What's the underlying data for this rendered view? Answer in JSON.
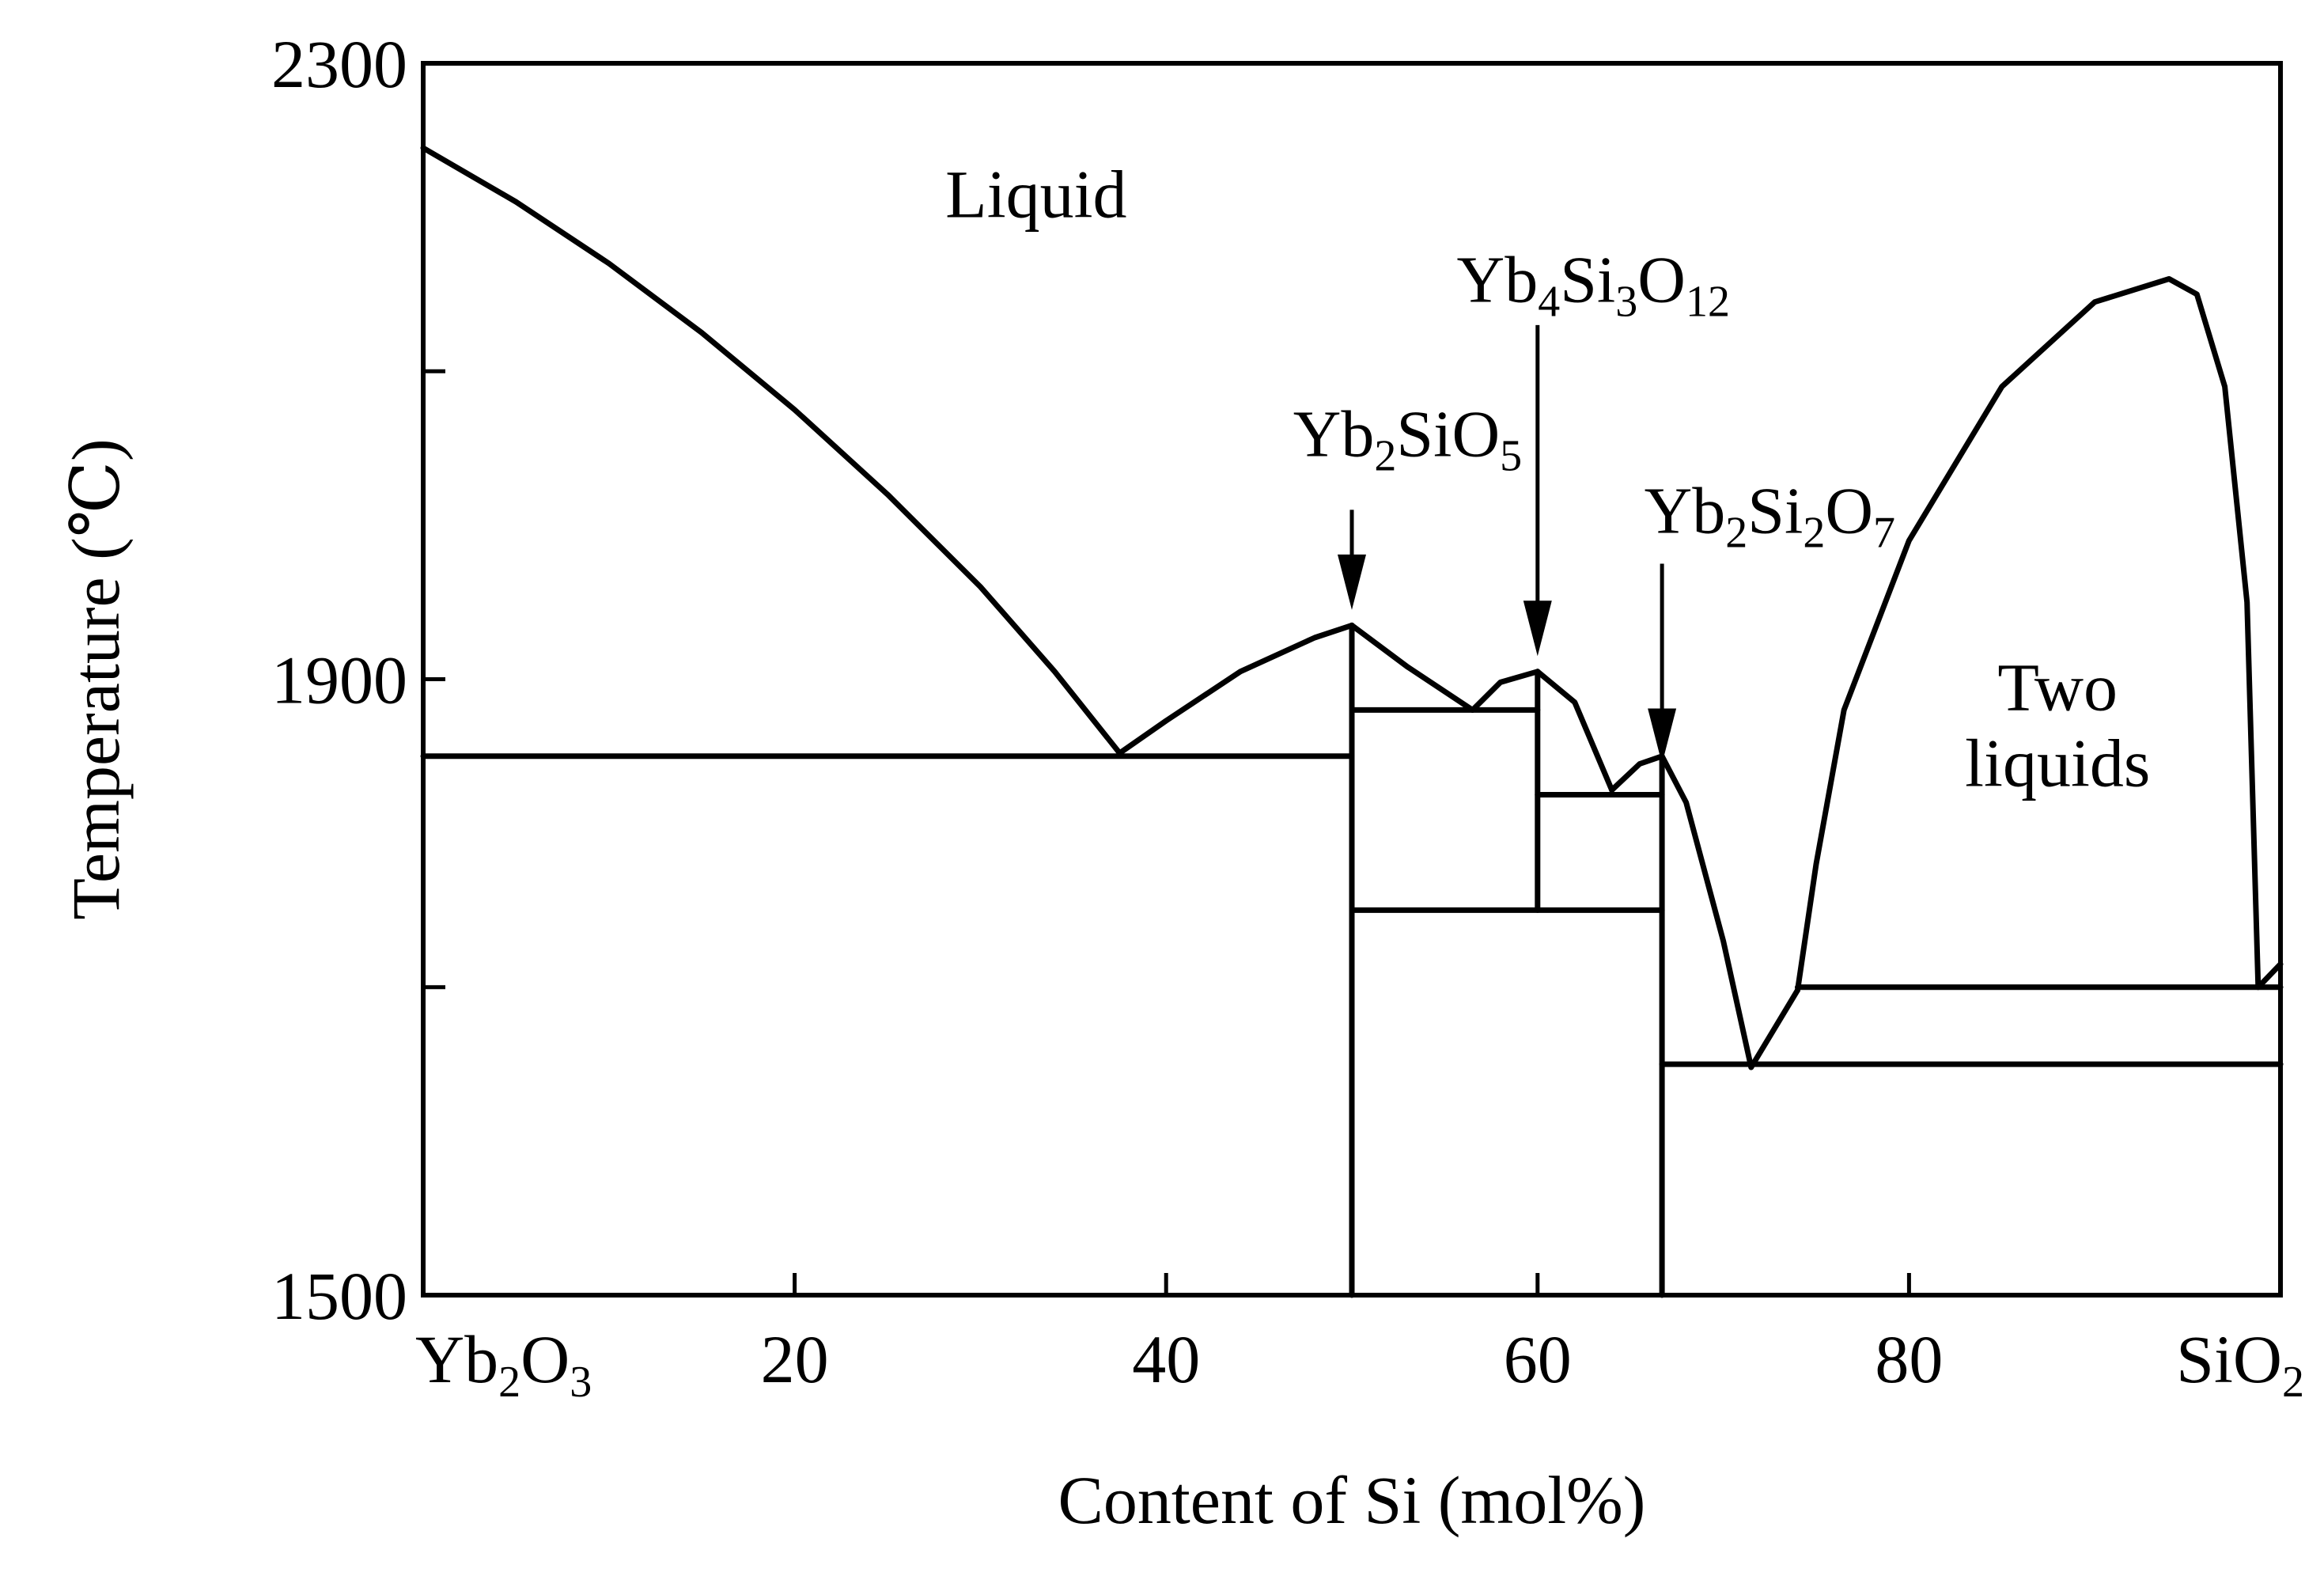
{
  "chart_data": {
    "type": "line",
    "title": "",
    "xlabel": "Content of Si (mol%)",
    "ylabel": "Temperature (℃)",
    "xlim": [
      0,
      100
    ],
    "ylim": [
      1500,
      2300
    ],
    "x_ticks": [
      {
        "value": 0,
        "label": "Yb",
        "sub": [
          "2",
          "O",
          "3"
        ],
        "label_parts": [
          "Yb",
          "2",
          "O",
          "3"
        ]
      },
      {
        "value": 20,
        "label": "20"
      },
      {
        "value": 40,
        "label": "40"
      },
      {
        "value": 60,
        "label": "60"
      },
      {
        "value": 80,
        "label": "80"
      },
      {
        "value": 100,
        "label_parts": [
          "SiO",
          "2"
        ]
      }
    ],
    "y_ticks": [
      {
        "value": 1500,
        "label": "1500"
      },
      {
        "value": 1700,
        "label": ""
      },
      {
        "value": 1900,
        "label": "1900"
      },
      {
        "value": 2100,
        "label": ""
      },
      {
        "value": 2300,
        "label": "2300"
      }
    ],
    "x_minor_ticks": [
      0,
      20,
      40,
      60,
      80,
      100
    ],
    "region_labels": [
      {
        "lines": [
          "Liquid"
        ],
        "x": 33,
        "y": 2200
      },
      {
        "lines": [
          "Two",
          "liquids"
        ],
        "x": 88,
        "y": 1880
      }
    ],
    "compound_labels": [
      {
        "parts": [
          "Yb",
          "2",
          "SiO",
          "5"
        ],
        "x": 53,
        "y": 2045,
        "arrow_x": 50,
        "arrow_from": 2010,
        "arrow_to": 1945
      },
      {
        "parts": [
          "Yb",
          "4",
          "Si",
          "3",
          "O",
          "12"
        ],
        "x": 63,
        "y": 2145,
        "arrow_x": 60,
        "arrow_from": 2130,
        "arrow_to": 1915
      },
      {
        "parts": [
          "Yb",
          "2",
          "Si",
          "2",
          "O",
          "7"
        ],
        "x": 72.5,
        "y": 1995,
        "arrow_x": 66.7,
        "arrow_from": 1975,
        "arrow_to": 1845
      }
    ],
    "series": [
      {
        "points": [
          [
            0,
            2245
          ],
          [
            5,
            2210
          ],
          [
            10,
            2170
          ],
          [
            15,
            2125
          ],
          [
            20,
            2075
          ],
          [
            25,
            2020
          ],
          [
            30,
            1960
          ],
          [
            34,
            1905
          ],
          [
            37.5,
            1852
          ]
        ]
      },
      {
        "points": [
          [
            37.5,
            1852
          ],
          [
            40,
            1873
          ],
          [
            44,
            1905
          ],
          [
            48,
            1927
          ],
          [
            50,
            1935
          ]
        ]
      },
      {
        "points": [
          [
            50,
            1935
          ],
          [
            53,
            1908
          ],
          [
            56.5,
            1880
          ]
        ]
      },
      {
        "points": [
          [
            56.5,
            1880
          ],
          [
            58,
            1898
          ],
          [
            60,
            1905
          ]
        ]
      },
      {
        "points": [
          [
            60,
            1905
          ],
          [
            62,
            1885
          ],
          [
            64,
            1828
          ]
        ]
      },
      {
        "points": [
          [
            64,
            1828
          ],
          [
            65.5,
            1845
          ],
          [
            66.7,
            1850
          ]
        ]
      },
      {
        "points": [
          [
            66.7,
            1850
          ],
          [
            68,
            1820
          ],
          [
            70,
            1730
          ],
          [
            71.5,
            1648
          ]
        ]
      },
      {
        "points": [
          [
            71.5,
            1648
          ],
          [
            74,
            1698
          ]
        ]
      },
      {
        "points": [
          [
            74,
            1698
          ],
          [
            75,
            1780
          ],
          [
            76.5,
            1880
          ],
          [
            80,
            1990
          ],
          [
            85,
            2090
          ],
          [
            90,
            2145
          ],
          [
            94,
            2160
          ],
          [
            95.5,
            2150
          ],
          [
            97,
            2090
          ],
          [
            98.2,
            1950
          ],
          [
            98.8,
            1700
          ]
        ]
      },
      {
        "points": [
          [
            98.8,
            1700
          ],
          [
            100,
            1715
          ]
        ]
      },
      {
        "points": [
          [
            0,
            1850
          ],
          [
            50,
            1850
          ]
        ]
      },
      {
        "points": [
          [
            50,
            1880
          ],
          [
            60,
            1880
          ]
        ]
      },
      {
        "points": [
          [
            60,
            1825
          ],
          [
            66.7,
            1825
          ]
        ]
      },
      {
        "points": [
          [
            50,
            1750
          ],
          [
            66.7,
            1750
          ]
        ]
      },
      {
        "points": [
          [
            74,
            1700
          ],
          [
            100,
            1700
          ]
        ]
      },
      {
        "points": [
          [
            66.7,
            1650
          ],
          [
            100,
            1650
          ]
        ]
      },
      {
        "points": [
          [
            50,
            1500
          ],
          [
            50,
            1935
          ]
        ]
      },
      {
        "points": [
          [
            60,
            1750
          ],
          [
            60,
            1905
          ]
        ]
      },
      {
        "points": [
          [
            66.7,
            1500
          ],
          [
            66.7,
            1850
          ]
        ]
      }
    ]
  }
}
